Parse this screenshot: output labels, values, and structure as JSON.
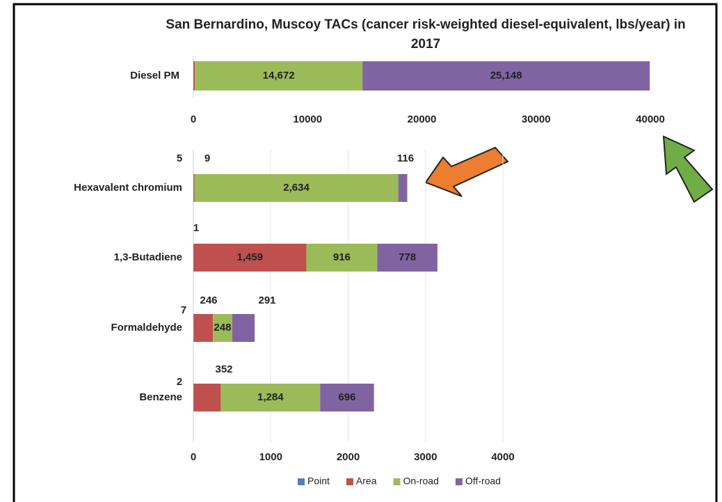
{
  "chart_data": [
    {
      "type": "bar",
      "orientation": "horizontal",
      "stacked": true,
      "title": "San Bernardino, Muscoy TACs (cancer risk-weighted diesel-equivalent, lbs/year) in 2017",
      "categories": [
        "Diesel PM"
      ],
      "series": [
        {
          "name": "Point",
          "color": "#4f81bd",
          "values": [
            0
          ],
          "value_labels": [
            null
          ]
        },
        {
          "name": "Area",
          "color": "#c0504d",
          "values": [
            130
          ],
          "value_labels": [
            null
          ]
        },
        {
          "name": "On-road",
          "color": "#9bbb59",
          "values": [
            14672
          ],
          "value_labels": [
            "14,672"
          ]
        },
        {
          "name": "Off-road",
          "color": "#8064a2",
          "values": [
            25148
          ],
          "value_labels": [
            "25,148"
          ]
        }
      ],
      "xlim": [
        0,
        40000
      ],
      "xticks": [
        0,
        10000,
        20000,
        30000,
        40000
      ],
      "grid": false
    },
    {
      "type": "bar",
      "orientation": "horizontal",
      "stacked": true,
      "categories": [
        "Hexavalent chromium",
        "1,3-Butadiene",
        "Formaldehyde",
        "Benzene"
      ],
      "series": [
        {
          "name": "Point",
          "color": "#4f81bd",
          "values": [
            5,
            1,
            7,
            2
          ]
        },
        {
          "name": "Area",
          "color": "#c0504d",
          "values": [
            9,
            1459,
            246,
            352
          ],
          "value_labels": [
            "9",
            "1,459",
            "246",
            "352"
          ]
        },
        {
          "name": "On-road",
          "color": "#9bbb59",
          "values": [
            2634,
            916,
            248,
            1284
          ],
          "value_labels": [
            "2,634",
            "916",
            "248",
            "1,284"
          ]
        },
        {
          "name": "Off-road",
          "color": "#8064a2",
          "values": [
            116,
            778,
            291,
            696
          ],
          "value_labels": [
            "116",
            "778",
            "291",
            "696"
          ]
        }
      ],
      "xlim": [
        0,
        4000
      ],
      "xticks": [
        0,
        1000,
        2000,
        3000,
        4000
      ],
      "grid": true,
      "legend": "bottom"
    }
  ]
}
